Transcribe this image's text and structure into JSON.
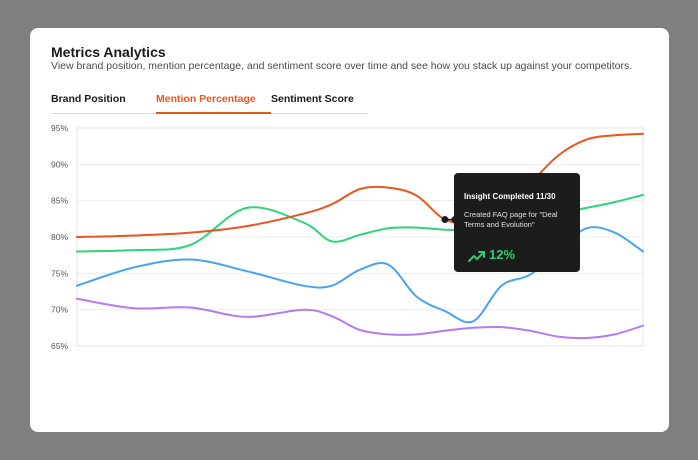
{
  "header": {
    "title": "Metrics Analytics",
    "subtitle": "View brand position, mention percentage, and sentiment score over time and see how you stack up against your competitors."
  },
  "tabs": [
    {
      "label": "Brand Position",
      "active": false
    },
    {
      "label": "Mention Percentage",
      "active": true
    },
    {
      "label": "Sentiment Score",
      "active": false
    }
  ],
  "tooltip": {
    "title": "Insight Completed 11/30",
    "description": "Created FAQ page for \"Deal Terms and Evolution\"",
    "value": "12%",
    "trend_icon": "trending-up-icon"
  },
  "colors": {
    "accent": "#e8571f",
    "orange": "#e8571f",
    "green": "#2ed47a",
    "blue": "#4aa3f0",
    "purple": "#b57bf2",
    "trend_green": "#2ecc71"
  },
  "chart_data": {
    "type": "line",
    "y_ticks": [
      "95%",
      "90%",
      "85%",
      "80%",
      "75%",
      "70%",
      "65%"
    ],
    "ylim": [
      65,
      95
    ],
    "x": [
      0,
      0.1,
      0.2,
      0.3,
      0.4,
      0.45,
      0.5,
      0.55,
      0.6,
      0.65,
      0.7,
      0.75,
      0.8,
      0.85,
      0.9,
      0.95,
      1.0
    ],
    "series": [
      {
        "color": "#e8571f",
        "values": [
          80.0,
          80.2,
          80.6,
          81.5,
          83.2,
          84.5,
          86.6,
          86.8,
          85.7,
          82.4,
          82.0,
          83.5,
          87.3,
          91.2,
          93.4,
          94.0,
          94.2
        ]
      },
      {
        "color": "#2ed47a",
        "values": [
          78.0,
          78.2,
          78.9,
          84.0,
          82.0,
          79.4,
          80.3,
          81.2,
          81.3,
          81.0,
          81.0,
          81.4,
          82.3,
          83.2,
          84.0,
          84.8,
          85.8
        ]
      },
      {
        "color": "#4aa3f0",
        "values": [
          73.3,
          75.8,
          76.9,
          75.3,
          73.3,
          73.3,
          75.5,
          76.2,
          71.8,
          69.8,
          68.4,
          73.3,
          74.8,
          78.0,
          81.2,
          80.6,
          78.0
        ]
      },
      {
        "color": "#b57bf2",
        "values": [
          71.5,
          70.2,
          70.3,
          69.0,
          70.0,
          69.1,
          67.2,
          66.6,
          66.6,
          67.1,
          67.5,
          67.6,
          67.1,
          66.3,
          66.1,
          66.6,
          67.8
        ]
      }
    ],
    "marker": {
      "series": 0,
      "x": 0.65,
      "value": 82.4
    },
    "grid": true
  }
}
